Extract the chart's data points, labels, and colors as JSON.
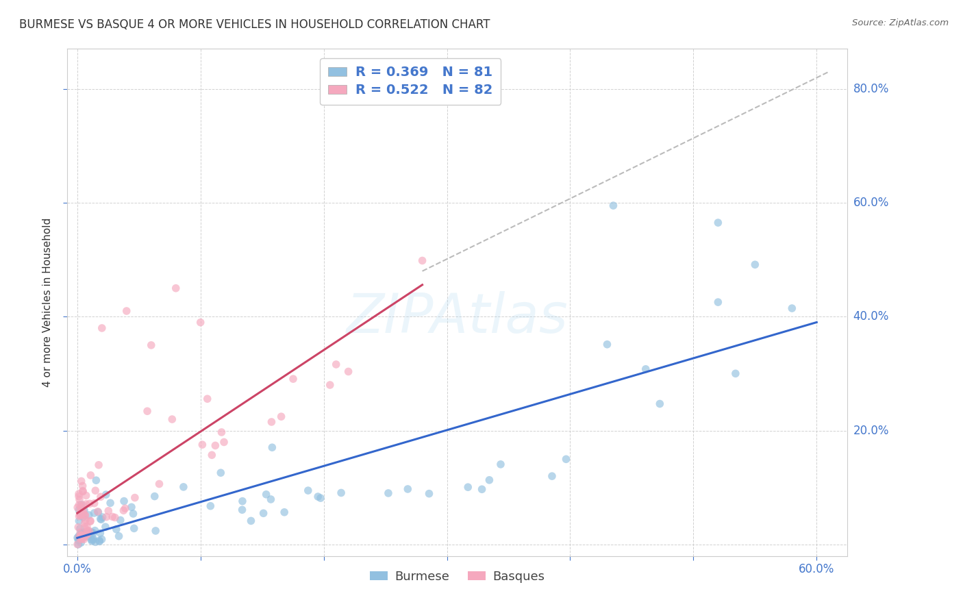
{
  "title": "BURMESE VS BASQUE 4 OR MORE VEHICLES IN HOUSEHOLD CORRELATION CHART",
  "source": "Source: ZipAtlas.com",
  "ylabel": "4 or more Vehicles in Household",
  "legend_label1": "R = 0.369   N = 81",
  "legend_label2": "R = 0.522   N = 82",
  "legend_label_bottom1": "Burmese",
  "legend_label_bottom2": "Basques",
  "blue_color": "#92c0e0",
  "pink_color": "#f5a8be",
  "blue_line_color": "#3366cc",
  "pink_line_color": "#cc4466",
  "watermark": "ZIPAtlas",
  "grid_color": "#cccccc",
  "background_color": "#ffffff",
  "dashed_line_color": "#bbbbbb",
  "tick_label_color": "#4477cc",
  "title_color": "#333333",
  "source_color": "#666666",
  "ylabel_color": "#333333"
}
